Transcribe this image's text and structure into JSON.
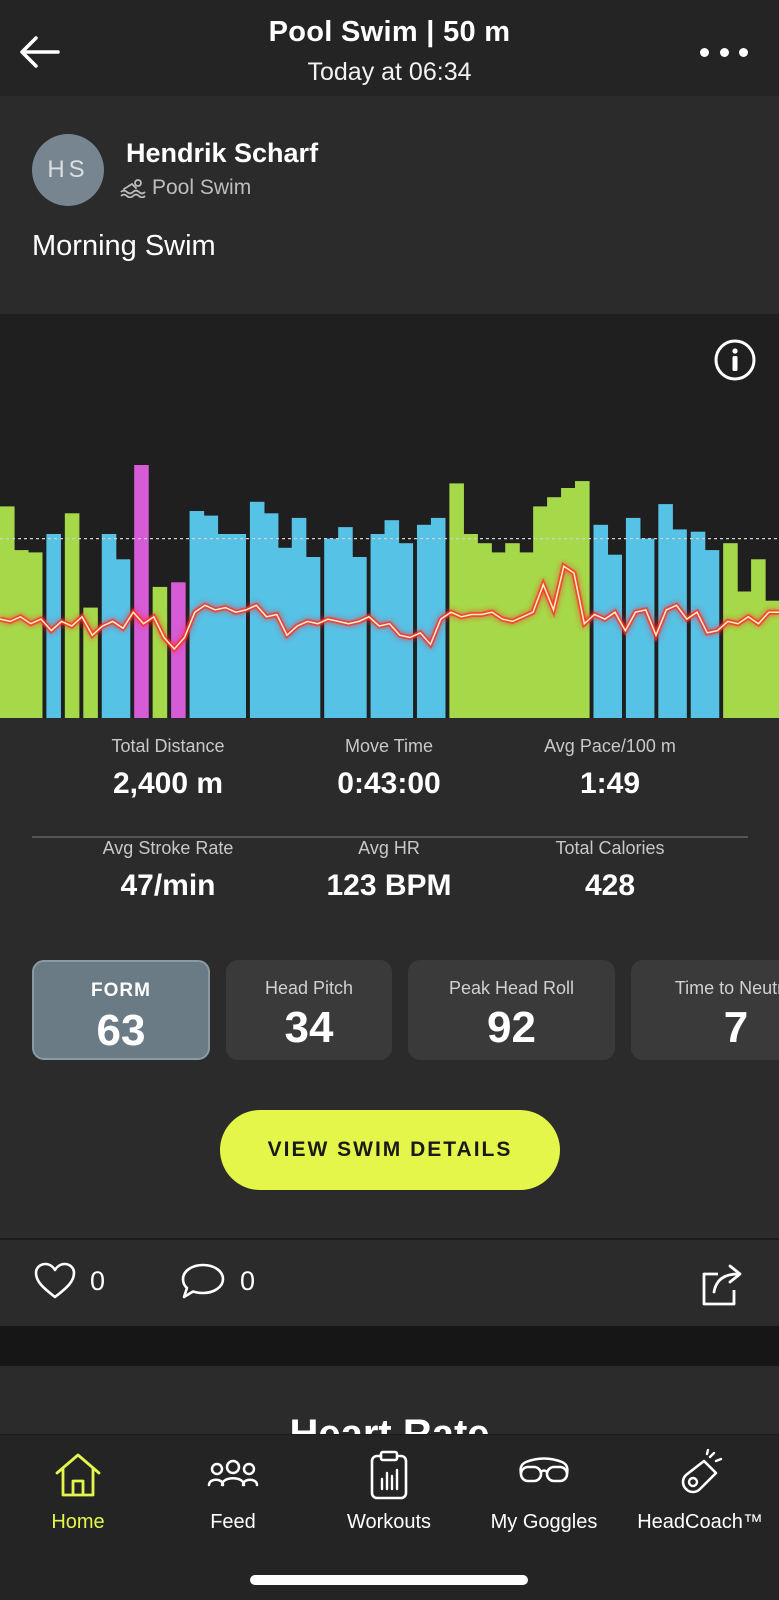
{
  "header": {
    "title": "Pool Swim | 50 m",
    "subtitle": "Today at 06:34",
    "back_icon": "arrow-left-icon",
    "more_icon": "ellipsis-icon"
  },
  "post": {
    "avatar_initials": "HS",
    "user_name": "Hendrik Scharf",
    "sport_icon": "swimmer-icon",
    "sport": "Pool Swim",
    "activity_title": "Morning Swim"
  },
  "chart_data": {
    "type": "bar",
    "title": "",
    "xlabel": "",
    "ylabel": "",
    "colors": {
      "green": "#a6d94a",
      "blue": "#56c2e6",
      "magenta": "#d65bd6",
      "hr_line": "#ff3b3b"
    },
    "bars": [
      {
        "color": "green",
        "values": [
          0.92,
          0.73,
          0.72
        ]
      },
      {
        "color": "blue",
        "values": [
          0.8
        ]
      },
      {
        "color": "green",
        "values": [
          0.89
        ]
      },
      {
        "color": "green",
        "values": [
          0.48
        ]
      },
      {
        "color": "blue",
        "values": [
          0.8,
          0.69
        ]
      },
      {
        "color": "magenta",
        "values": [
          1.1
        ]
      },
      {
        "color": "green",
        "values": [
          0.57
        ]
      },
      {
        "color": "magenta",
        "values": [
          0.59
        ]
      },
      {
        "color": "blue",
        "values": [
          0.9,
          0.88,
          0.8,
          0.8
        ]
      },
      {
        "color": "blue",
        "values": [
          0.94,
          0.89,
          0.74,
          0.87,
          0.7
        ]
      },
      {
        "color": "blue",
        "values": [
          0.78,
          0.83,
          0.7
        ]
      },
      {
        "color": "blue",
        "values": [
          0.8,
          0.86,
          0.76
        ]
      },
      {
        "color": "blue",
        "values": [
          0.84,
          0.87
        ]
      },
      {
        "color": "green",
        "values": [
          1.02,
          0.8,
          0.76,
          0.72,
          0.76,
          0.72,
          0.92,
          0.96,
          1.0,
          1.03
        ]
      },
      {
        "color": "blue",
        "values": [
          0.84,
          0.71
        ]
      },
      {
        "color": "blue",
        "values": [
          0.87,
          0.78
        ]
      },
      {
        "color": "blue",
        "values": [
          0.93,
          0.82
        ]
      },
      {
        "color": "blue",
        "values": [
          0.81,
          0.73
        ]
      },
      {
        "color": "green",
        "values": [
          0.76,
          0.55,
          0.69,
          0.51
        ]
      }
    ],
    "reference_line": 0.78,
    "hr_series": [
      0.43,
      0.42,
      0.44,
      0.41,
      0.43,
      0.38,
      0.42,
      0.4,
      0.44,
      0.36,
      0.4,
      0.42,
      0.39,
      0.46,
      0.41,
      0.44,
      0.35,
      0.3,
      0.35,
      0.46,
      0.49,
      0.47,
      0.48,
      0.46,
      0.47,
      0.49,
      0.44,
      0.45,
      0.36,
      0.4,
      0.42,
      0.41,
      0.43,
      0.42,
      0.41,
      0.42,
      0.44,
      0.4,
      0.41,
      0.36,
      0.35,
      0.37,
      0.32,
      0.43,
      0.46,
      0.44,
      0.45,
      0.45,
      0.46,
      0.43,
      0.42,
      0.44,
      0.46,
      0.58,
      0.47,
      0.66,
      0.63,
      0.41,
      0.45,
      0.43,
      0.46,
      0.38,
      0.46,
      0.47,
      0.36,
      0.47,
      0.49,
      0.43,
      0.46,
      0.37,
      0.38,
      0.42,
      0.41,
      0.44,
      0.41,
      0.46,
      0.46
    ]
  },
  "info_icon": "info-circle-icon",
  "stats": [
    {
      "label": "Total Distance",
      "value": "2,400 m"
    },
    {
      "label": "Move Time",
      "value": "0:43:00"
    },
    {
      "label": "Avg Pace/100 m",
      "value": "1:49"
    },
    {
      "label": "Avg Stroke Rate",
      "value": "47/min"
    },
    {
      "label": "Avg HR",
      "value": "123 BPM"
    },
    {
      "label": "Total Calories",
      "value": "428"
    }
  ],
  "metrics": [
    {
      "label": "FORM",
      "value": "63"
    },
    {
      "label": "Head Pitch",
      "value": "34"
    },
    {
      "label": "Peak Head Roll",
      "value": "92"
    },
    {
      "label": "Time to Neutral",
      "value": "7"
    }
  ],
  "cta_label": "VIEW SWIM DETAILS",
  "social": {
    "likes": "0",
    "comments": "0",
    "like_icon": "heart-icon",
    "comment_icon": "speech-bubble-icon",
    "share_icon": "share-icon"
  },
  "next_section_title": "Heart Rate",
  "tabs": [
    {
      "label": "Home",
      "icon": "home-icon",
      "active": true
    },
    {
      "label": "Feed",
      "icon": "people-icon",
      "active": false
    },
    {
      "label": "Workouts",
      "icon": "clipboard-icon",
      "active": false
    },
    {
      "label": "My Goggles",
      "icon": "goggles-icon",
      "active": false
    },
    {
      "label": "HeadCoach™",
      "icon": "whistle-icon",
      "active": false
    }
  ]
}
